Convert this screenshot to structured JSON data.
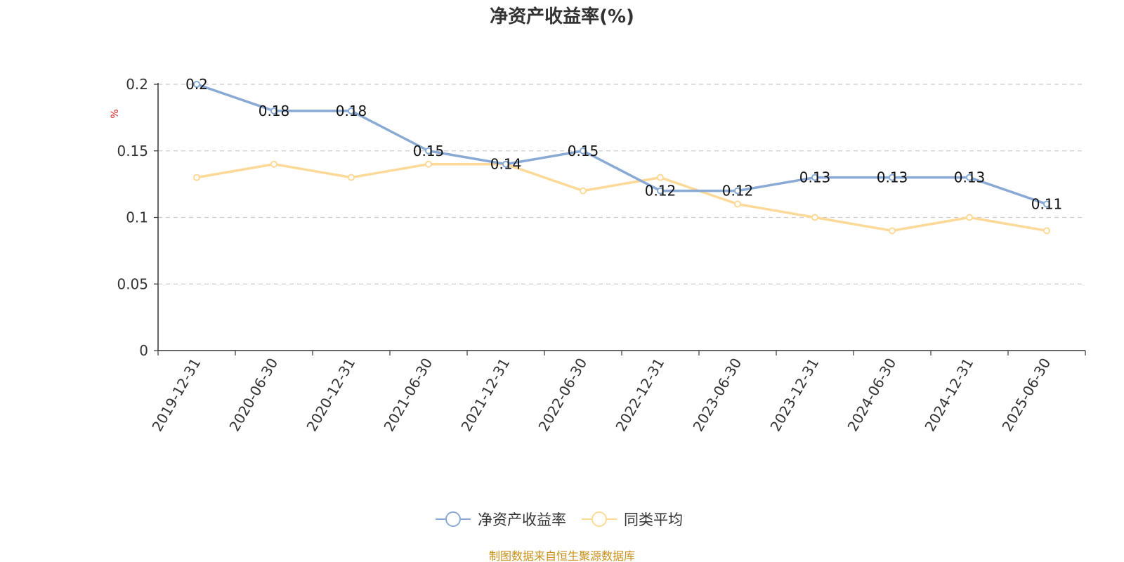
{
  "chart_data": {
    "type": "line",
    "title": "净资产收益率(%)",
    "xlabel": "",
    "ylabel": "%",
    "categories": [
      "2019-12-31",
      "2020-06-30",
      "2020-12-31",
      "2021-06-30",
      "2021-12-31",
      "2022-06-30",
      "2022-12-31",
      "2023-06-30",
      "2023-12-31",
      "2024-06-30",
      "2024-12-31",
      "2025-06-30"
    ],
    "series": [
      {
        "name": "净资产收益率",
        "color": "#8aaad6",
        "values": [
          0.2,
          0.18,
          0.18,
          0.15,
          0.14,
          0.15,
          0.12,
          0.12,
          0.13,
          0.13,
          0.13,
          0.11
        ],
        "show_labels": true
      },
      {
        "name": "同类平均",
        "color": "#fdd998",
        "values": [
          0.13,
          0.14,
          0.13,
          0.14,
          0.14,
          0.12,
          0.13,
          0.11,
          0.1,
          0.09,
          0.1,
          0.09
        ],
        "show_labels": false
      }
    ],
    "ylim": [
      0,
      0.2
    ],
    "y_ticks": [
      "0",
      "0.05",
      "0.1",
      "0.15",
      "0.2"
    ],
    "grid": true,
    "legend_position": "bottom-center",
    "source": "制图数据来自恒生聚源数据库"
  }
}
